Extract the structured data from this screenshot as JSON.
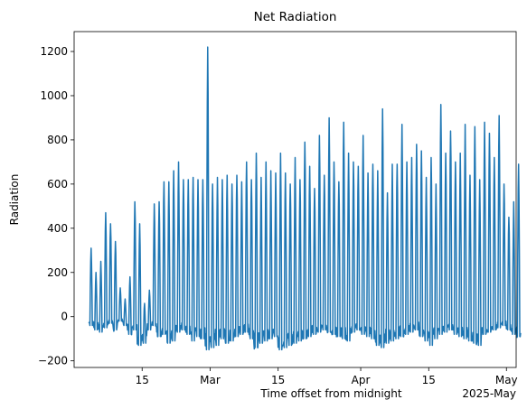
{
  "chart_data": {
    "type": "line",
    "title": "Net Radiation",
    "xlabel": "Time offset from midnight",
    "ylabel": "Radiation",
    "x_offset_label": "2025-May",
    "xlim": [
      "2025-02-01",
      "2025-05-03"
    ],
    "ylim": [
      -230,
      1290
    ],
    "grid": false,
    "legend": "none",
    "x_ticks": [
      {
        "date": "2025-02-15",
        "label": "15"
      },
      {
        "date": "2025-03-01",
        "label": "Mar"
      },
      {
        "date": "2025-03-15",
        "label": "15"
      },
      {
        "date": "2025-04-01",
        "label": "Apr"
      },
      {
        "date": "2025-04-15",
        "label": "15"
      },
      {
        "date": "2025-05-01",
        "label": "May"
      }
    ],
    "y_ticks": [
      -200,
      0,
      200,
      400,
      600,
      800,
      1000,
      1200
    ],
    "series": [
      {
        "color": "#1f77b4",
        "data_start": "2025-02-04",
        "data_end": "2025-05-01",
        "daily_peaks": [
          310,
          200,
          250,
          470,
          420,
          340,
          130,
          80,
          180,
          520,
          420,
          60,
          120,
          510,
          520,
          610,
          610,
          660,
          700,
          620,
          620,
          630,
          620,
          620,
          1220,
          600,
          630,
          620,
          640,
          600,
          640,
          610,
          700,
          620,
          740,
          630,
          700,
          660,
          650,
          740,
          650,
          600,
          720,
          620,
          790,
          680,
          580,
          820,
          640,
          900,
          700,
          610,
          880,
          740,
          700,
          680,
          820,
          650,
          690,
          660,
          940,
          560,
          690,
          690,
          870,
          700,
          720,
          780,
          750,
          630,
          720,
          600,
          960,
          740,
          840,
          700,
          740,
          870,
          640,
          860,
          620,
          880,
          830,
          720,
          910,
          600,
          450,
          520,
          690
        ],
        "daily_minima": [
          -40,
          -60,
          -70,
          -50,
          -30,
          -60,
          -20,
          -40,
          -80,
          -60,
          -130,
          -120,
          -60,
          -40,
          -90,
          -80,
          -120,
          -110,
          -70,
          -60,
          -80,
          -110,
          -90,
          -100,
          -150,
          -140,
          -130,
          -100,
          -120,
          -110,
          -90,
          -80,
          -70,
          -100,
          -140,
          -120,
          -110,
          -100,
          -90,
          -150,
          -140,
          -130,
          -120,
          -110,
          -100,
          -90,
          -80,
          -70,
          -60,
          -70,
          -80,
          -90,
          -100,
          -110,
          -70,
          -60,
          -80,
          -90,
          -100,
          -130,
          -140,
          -120,
          -110,
          -100,
          -90,
          -80,
          -70,
          -60,
          -90,
          -110,
          -130,
          -100,
          -80,
          -70,
          -60,
          -80,
          -90,
          -100,
          -110,
          -120,
          -130,
          -80,
          -70,
          -60,
          -50,
          -40,
          -60,
          -80,
          -90
        ]
      }
    ]
  }
}
